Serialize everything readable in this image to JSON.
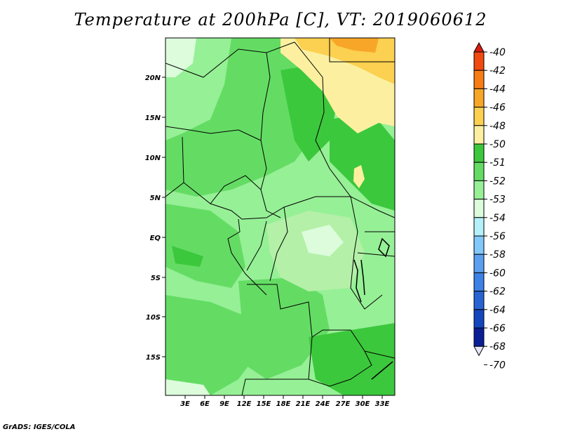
{
  "header": {
    "title": "Temperature at 200hPa [C], VT: 2019060612"
  },
  "footer": {
    "credit": "GrADS: IGES/COLA"
  },
  "map": {
    "lat_labels": [
      "20N",
      "15N",
      "10N",
      "5N",
      "EQ",
      "5S",
      "10S",
      "15S"
    ],
    "lon_labels": [
      "3E",
      "6E",
      "9E",
      "12E",
      "15E",
      "18E",
      "21E",
      "24E",
      "27E",
      "30E",
      "33E"
    ]
  },
  "colorbar": {
    "labels": [
      "-40",
      "-42",
      "-44",
      "-46",
      "-48",
      "-50",
      "-51",
      "-52",
      "-53",
      "-54",
      "-56",
      "-58",
      "-60",
      "-62",
      "-64",
      "-66",
      "-68",
      "-70"
    ],
    "colors": [
      "#dc1c10",
      "#f04a10",
      "#f87c14",
      "#f8a628",
      "#fcd050",
      "#fcf0a0",
      "#3cc83c",
      "#64dc64",
      "#96f096",
      "#dcfcdc",
      "#b4f0fa",
      "#82c8fa",
      "#5aa0f0",
      "#3c82e6",
      "#2864d2",
      "#1446be",
      "#0a1e96",
      "#e6e6fa"
    ]
  }
}
